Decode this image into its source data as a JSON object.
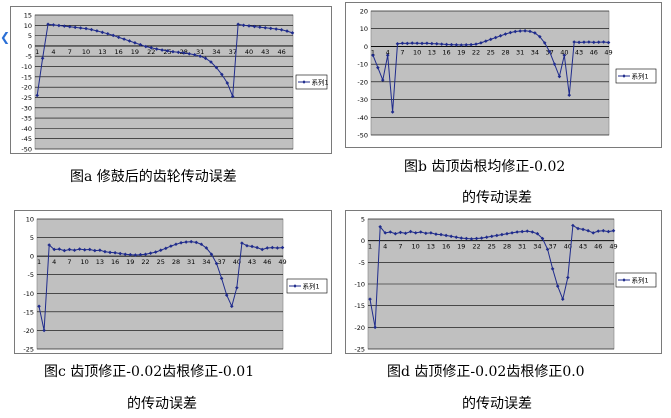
{
  "captions": {
    "a": "图a 修鼓后的齿轮传动误差",
    "b1": "图b  齿顶齿根均修正-0.02",
    "b2": "的传动误差",
    "c1": "图c  齿顶修正-0.02齿根修正-0.01",
    "c2": "的传动误差",
    "d1": "图d  齿顶修正-0.02齿根修正0.0",
    "d2": "的传动误差"
  },
  "edge_icon": "chevron-icon",
  "colors": {
    "series": "#1f2b8c",
    "plot_bg": "#c0c0c0",
    "grid": "#000000"
  },
  "chart_data": [
    {
      "id": "a",
      "type": "line",
      "x_ticks": [
        "1",
        "4",
        "7",
        "10",
        "13",
        "16",
        "19",
        "22",
        "25",
        "28",
        "31",
        "34",
        "37",
        "40",
        "43",
        "46"
      ],
      "y_ticks": [
        15,
        10,
        5,
        0,
        -5,
        -10,
        -15,
        -20,
        -25,
        -30,
        -35,
        -40,
        -45,
        -50
      ],
      "ylim": [
        -50,
        15
      ],
      "grid": true,
      "legend": "系列1",
      "legend_position": "right",
      "series": [
        {
          "name": "系列1",
          "values": [
            -24,
            -6,
            10.5,
            10.2,
            9.9,
            9.6,
            9.3,
            9.0,
            8.7,
            8.4,
            7.9,
            7.3,
            6.6,
            5.9,
            5.1,
            4.2,
            3.3,
            2.4,
            1.5,
            0.6,
            -0.3,
            -0.9,
            -1.5,
            -2.0,
            -2.4,
            -2.8,
            -3.1,
            -3.4,
            -3.8,
            -4.3,
            -5.0,
            -6.0,
            -7.8,
            -10.5,
            -13.8,
            -18.0,
            -24.5,
            10.5,
            10.0,
            9.7,
            9.4,
            9.1,
            8.8,
            8.5,
            8.2,
            7.8,
            7.2,
            6.3
          ]
        }
      ]
    },
    {
      "id": "b",
      "type": "line",
      "x_ticks": [
        "1",
        "4",
        "7",
        "10",
        "13",
        "16",
        "19",
        "22",
        "25",
        "28",
        "31",
        "34",
        "37",
        "40",
        "43",
        "46",
        "49"
      ],
      "y_ticks": [
        20,
        10,
        0,
        -10,
        -20,
        -30,
        -40,
        -50
      ],
      "ylim": [
        -50,
        20
      ],
      "grid": true,
      "legend": "系列1",
      "legend_position": "right",
      "series": [
        {
          "name": "系列1",
          "values": [
            -5,
            -12,
            -19,
            -5,
            -37,
            1.5,
            1.8,
            1.7,
            1.9,
            1.8,
            1.7,
            1.8,
            1.6,
            1.5,
            1.3,
            1.1,
            1.0,
            0.9,
            0.8,
            0.9,
            1.0,
            1.3,
            2.0,
            3.0,
            4.0,
            5.0,
            6.0,
            7.0,
            7.8,
            8.4,
            8.7,
            8.8,
            8.5,
            7.6,
            5.5,
            2.0,
            -3.0,
            -10.0,
            -17.0,
            -5.0,
            -27.5,
            2.5,
            2.3,
            2.4,
            2.5,
            2.3,
            2.4,
            2.5,
            2.2
          ]
        }
      ]
    },
    {
      "id": "c",
      "type": "line",
      "x_ticks": [
        "1",
        "4",
        "7",
        "10",
        "13",
        "16",
        "19",
        "22",
        "25",
        "28",
        "31",
        "34",
        "37",
        "40",
        "43",
        "46",
        "49"
      ],
      "y_ticks": [
        10,
        5,
        0,
        -5,
        -10,
        -15,
        -20,
        -25
      ],
      "ylim": [
        -25,
        10
      ],
      "grid": true,
      "legend": "系列1",
      "legend_position": "right",
      "series": [
        {
          "name": "系列1",
          "values": [
            -13.5,
            -20,
            3,
            1.8,
            1.9,
            1.5,
            1.8,
            1.6,
            1.9,
            1.7,
            1.8,
            1.5,
            1.6,
            1.2,
            1.0,
            0.9,
            0.7,
            0.5,
            0.4,
            0.3,
            0.4,
            0.5,
            0.8,
            1.1,
            1.6,
            2.1,
            2.7,
            3.2,
            3.6,
            3.8,
            3.9,
            3.7,
            3.2,
            2.2,
            0.5,
            -2.0,
            -6.0,
            -10.5,
            -13.5,
            -8.5,
            3.5,
            2.8,
            2.6,
            2.3,
            1.8,
            2.2,
            2.3,
            2.2,
            2.3
          ]
        }
      ]
    },
    {
      "id": "d",
      "type": "line",
      "x_ticks": [
        "1",
        "4",
        "7",
        "10",
        "13",
        "16",
        "19",
        "22",
        "25",
        "28",
        "31",
        "34",
        "37",
        "40",
        "43",
        "46",
        "49"
      ],
      "y_ticks": [
        5,
        0,
        -5,
        -10,
        -15,
        -20,
        -25
      ],
      "ylim": [
        -25,
        5
      ],
      "grid": true,
      "legend": "系列1",
      "legend_position": "right",
      "series": [
        {
          "name": "系列1",
          "values": [
            -13.5,
            -20,
            3.2,
            1.8,
            2.0,
            1.6,
            1.9,
            1.7,
            2.1,
            1.8,
            2.0,
            1.7,
            1.8,
            1.5,
            1.4,
            1.2,
            1.0,
            0.8,
            0.6,
            0.5,
            0.4,
            0.5,
            0.6,
            0.8,
            1.0,
            1.2,
            1.4,
            1.6,
            1.8,
            2.0,
            2.1,
            2.2,
            2.0,
            1.6,
            0.5,
            -2.0,
            -6.5,
            -10.5,
            -13.5,
            -8.5,
            3.5,
            2.8,
            2.6,
            2.3,
            1.8,
            2.2,
            2.3,
            2.1,
            2.3
          ]
        }
      ]
    }
  ]
}
